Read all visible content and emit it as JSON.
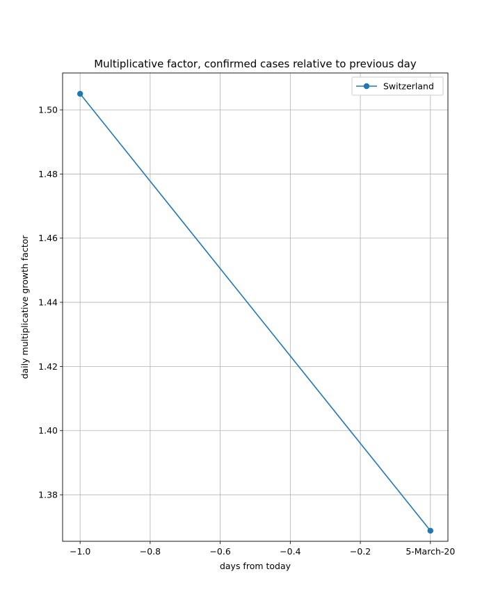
{
  "chart_data": {
    "type": "line",
    "title": "Multiplicative factor, confirmed cases relative to previous day",
    "xlabel": "days from today",
    "ylabel": "daily multiplicative growth factor",
    "xlim": [
      -1.05,
      0.05
    ],
    "ylim": [
      1.3655,
      1.5115
    ],
    "x_ticks": [
      -1.0,
      -0.8,
      -0.6,
      -0.4,
      -0.2,
      0.0
    ],
    "x_tick_labels": [
      "−1.0",
      "−0.8",
      "−0.6",
      "−0.4",
      "−0.2",
      "5-March-20"
    ],
    "y_ticks": [
      1.38,
      1.4,
      1.42,
      1.44,
      1.46,
      1.48,
      1.5
    ],
    "y_tick_labels": [
      "1.38",
      "1.40",
      "1.42",
      "1.44",
      "1.46",
      "1.48",
      "1.50"
    ],
    "grid": true,
    "legend_position": "top-right",
    "series": [
      {
        "name": "Switzerland",
        "color": "#1f77b4",
        "marker": "circle",
        "x": [
          -1.0,
          0.0
        ],
        "y": [
          1.505,
          1.3688
        ]
      }
    ]
  }
}
